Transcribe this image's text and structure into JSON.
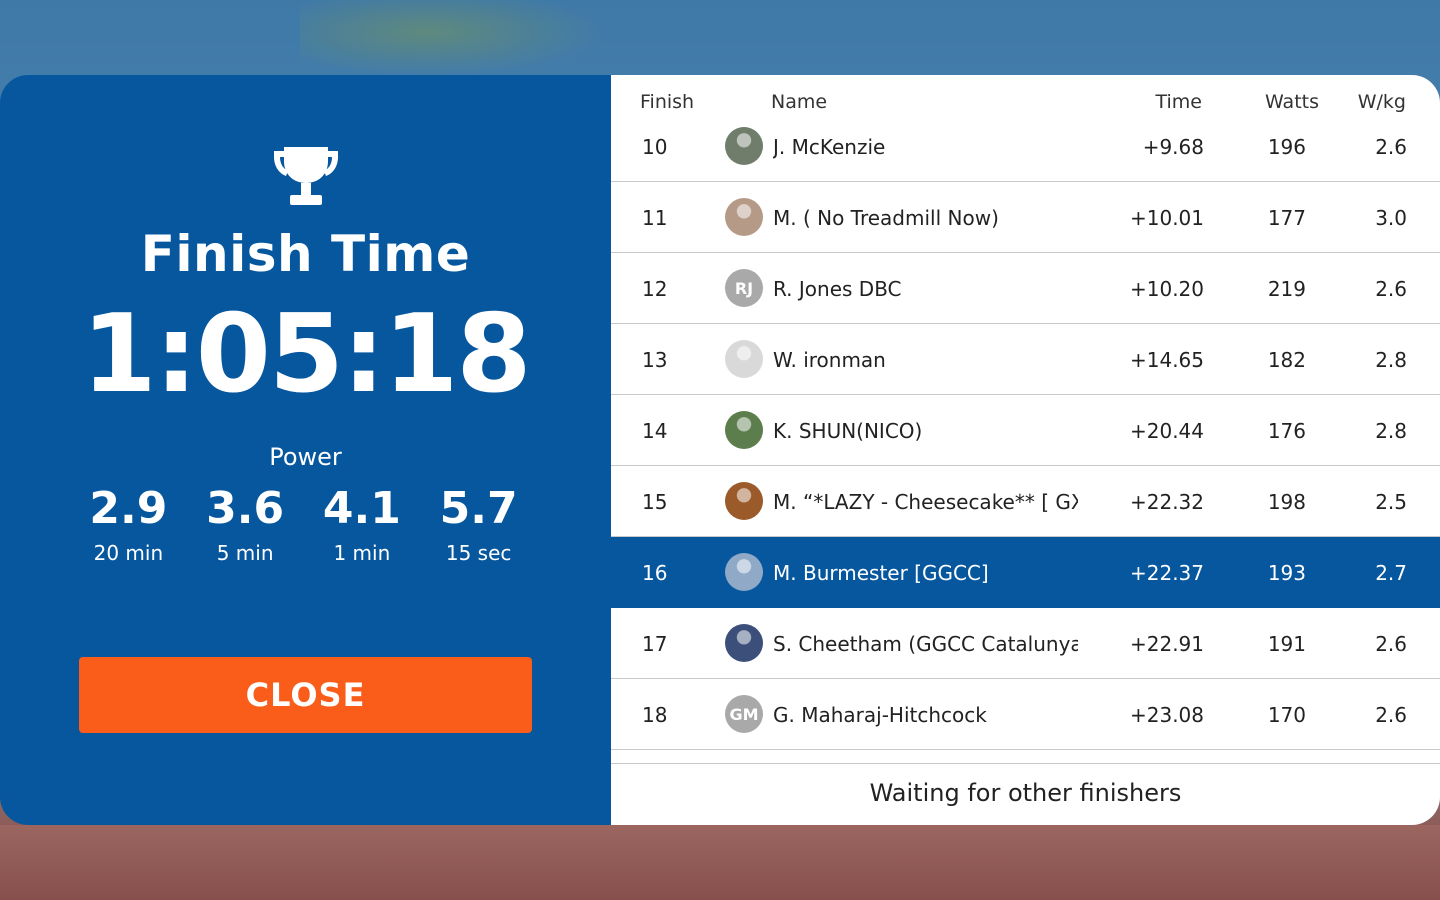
{
  "summary": {
    "title": "Finish Time",
    "finish_time": "1:05:18",
    "power_label": "Power",
    "power": [
      {
        "value": "2.9",
        "duration": "20 min"
      },
      {
        "value": "3.6",
        "duration": "5 min"
      },
      {
        "value": "4.1",
        "duration": "1 min"
      },
      {
        "value": "5.7",
        "duration": "15 sec"
      }
    ],
    "close_label": "CLOSE"
  },
  "results": {
    "headers": {
      "finish": "Finish",
      "name": "Name",
      "time": "Time",
      "watts": "Watts",
      "wkg": "W/kg"
    },
    "rows": [
      {
        "pos": "10",
        "avatar": "photo",
        "initials": "",
        "color": "#6f7d6a",
        "name": "J. McKenzie",
        "time": "+9.68",
        "watts": "196",
        "wkg": "2.6",
        "current": false
      },
      {
        "pos": "11",
        "avatar": "photo",
        "initials": "",
        "color": "#b69a88",
        "name": "M. ( No Treadmill Now)",
        "time": "+10.01",
        "watts": "177",
        "wkg": "3.0",
        "current": false
      },
      {
        "pos": "12",
        "avatar": "initials",
        "initials": "RJ",
        "color": "#a9a9a9",
        "name": "R. Jones DBC",
        "time": "+10.20",
        "watts": "219",
        "wkg": "2.6",
        "current": false
      },
      {
        "pos": "13",
        "avatar": "photo",
        "initials": "",
        "color": "#d9d9d9",
        "name": "W. ironman",
        "time": "+14.65",
        "watts": "182",
        "wkg": "2.8",
        "current": false
      },
      {
        "pos": "14",
        "avatar": "photo",
        "initials": "",
        "color": "#5c7d4c",
        "name": "K. SHUN(NICO)",
        "time": "+20.44",
        "watts": "176",
        "wkg": "2.8",
        "current": false
      },
      {
        "pos": "15",
        "avatar": "photo",
        "initials": "",
        "color": "#9a5a2a",
        "name": "M.  “*LAZY - Cheesecake** [ GXY ]",
        "time": "+22.32",
        "watts": "198",
        "wkg": "2.5",
        "current": false
      },
      {
        "pos": "16",
        "avatar": "photo",
        "initials": "",
        "color": "#8fa9c6",
        "name": "M. Burmester [GGCC]",
        "time": "+22.37",
        "watts": "193",
        "wkg": "2.7",
        "current": true
      },
      {
        "pos": "17",
        "avatar": "photo",
        "initials": "",
        "color": "#3b4f7a",
        "name": "S. Cheetham (GGCC Catalunya)",
        "time": "+22.91",
        "watts": "191",
        "wkg": "2.6",
        "current": false
      },
      {
        "pos": "18",
        "avatar": "initials",
        "initials": "GM",
        "color": "#a9a9a9",
        "name": "G. Maharaj-Hitchcock",
        "time": "+23.08",
        "watts": "170",
        "wkg": "2.6",
        "current": false
      }
    ],
    "waiting_text": "Waiting for other finishers"
  },
  "icons": {
    "trophy": "trophy-icon"
  },
  "colors": {
    "panel_blue": "#07579f",
    "close_orange": "#fa5c1a"
  }
}
